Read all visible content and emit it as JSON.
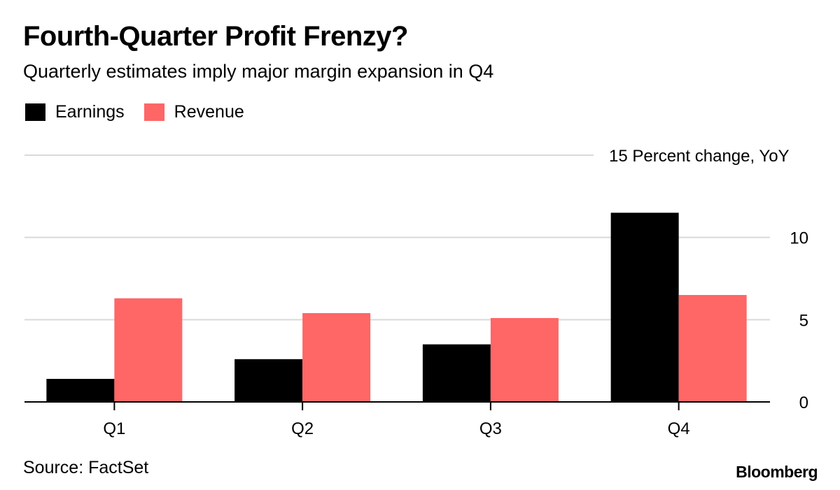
{
  "title": "Fourth-Quarter Profit Frenzy?",
  "subtitle": "Quarterly estimates imply major margin expansion in Q4",
  "source": "Source: FactSet",
  "brand": "Bloomberg",
  "colors": {
    "earnings": "#000000",
    "revenue": "#ff6666",
    "grid": "#d9d9d9",
    "axis": "#000000"
  },
  "chart_data": {
    "type": "bar",
    "categories": [
      "Q1",
      "Q2",
      "Q3",
      "Q4"
    ],
    "series": [
      {
        "name": "Earnings",
        "values": [
          1.4,
          2.6,
          3.5,
          11.5
        ]
      },
      {
        "name": "Revenue",
        "values": [
          6.3,
          5.4,
          5.1,
          6.5
        ]
      }
    ],
    "ylabel": "Percent change, YoY",
    "ylim": [
      0,
      15
    ],
    "yticks": [
      0,
      5,
      10,
      15
    ],
    "ytick_labels": [
      "0",
      "5",
      "10",
      "15"
    ],
    "grid": true,
    "legend_position": "top-left"
  }
}
